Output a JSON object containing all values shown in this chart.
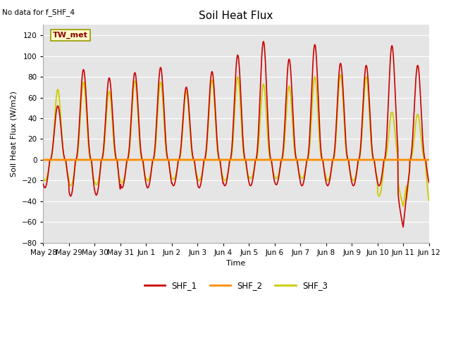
{
  "title": "Soil Heat Flux",
  "ylabel": "Soil Heat Flux (W/m2)",
  "xlabel": "Time",
  "no_data_text": "No data for f_SHF_4",
  "tw_met_label": "TW_met",
  "ylim": [
    -80,
    130
  ],
  "yticks": [
    -80,
    -60,
    -40,
    -20,
    0,
    20,
    40,
    60,
    80,
    100,
    120
  ],
  "background_color": "#e5e5e5",
  "line_colors": {
    "SHF_1": "#cc0000",
    "SHF_2": "#ff8c00",
    "SHF_3": "#cccc00"
  },
  "shf1_peaks": [
    52,
    87,
    79,
    84,
    89,
    70,
    85,
    101,
    114,
    97,
    111,
    93,
    91,
    110,
    91
  ],
  "shf3_peaks": [
    68,
    75,
    66,
    76,
    75,
    66,
    77,
    80,
    73,
    71,
    80,
    82,
    80,
    46,
    44
  ],
  "shf1_night": [
    -27,
    -35,
    -34,
    -27,
    -27,
    -25,
    -27,
    -25,
    -25,
    -24,
    -25,
    -25,
    -25,
    -25,
    -25
  ],
  "shf3_night": [
    -20,
    -25,
    -24,
    -22,
    -20,
    -19,
    -20,
    -20,
    -18,
    -18,
    -18,
    -20,
    -20,
    -35,
    -44
  ],
  "tick_labels": [
    "May 28",
    "May 29",
    "May 30",
    "May 31",
    "Jun 1",
    "Jun 2",
    "Jun 3",
    "Jun 4",
    "Jun 5",
    "Jun 6",
    "Jun 7",
    "Jun 8",
    "Jun 9",
    "Jun 10",
    "Jun 11",
    "Jun 12"
  ]
}
